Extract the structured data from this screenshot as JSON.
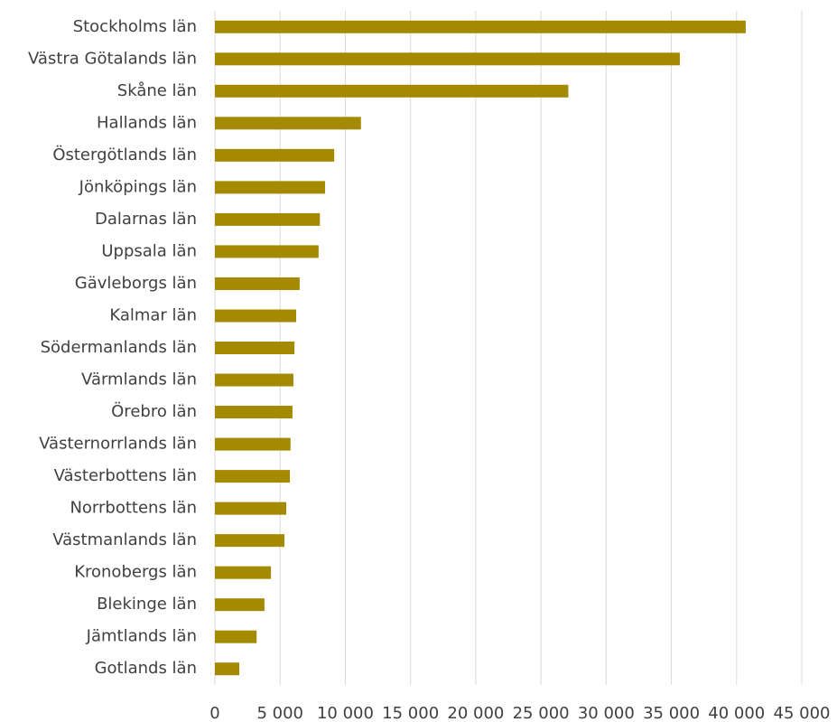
{
  "chart_data": {
    "type": "bar",
    "orientation": "horizontal",
    "categories": [
      "Stockholms län",
      "Västra Götalands län",
      "Skåne län",
      "Hallands län",
      "Östergötlands län",
      "Jönköpings län",
      "Dalarnas län",
      "Uppsala län",
      "Gävleborgs län",
      "Kalmar län",
      "Södermanlands län",
      "Värmlands län",
      "Örebro län",
      "Västernorrlands län",
      "Västerbottens län",
      "Norrbottens län",
      "Västmanlands län",
      "Kronobergs län",
      "Blekinge län",
      "Jämtlands län",
      "Gotlands län"
    ],
    "values": [
      40700,
      35650,
      27100,
      11200,
      9150,
      8450,
      8050,
      7950,
      6500,
      6230,
      6100,
      6020,
      5950,
      5800,
      5750,
      5470,
      5330,
      4300,
      3800,
      3200,
      1870
    ],
    "color": "#a38a00",
    "xlim": [
      0,
      45000
    ],
    "xticks": [
      0,
      {
        "value": 5000,
        "label": "5 000"
      },
      {
        "value": 10000,
        "label": "10 000"
      },
      {
        "value": 15000,
        "label": "15 000"
      },
      {
        "value": 20000,
        "label": "20 000"
      },
      {
        "value": 25000,
        "label": "25 000"
      },
      {
        "value": 30000,
        "label": "30 000"
      },
      {
        "value": 35000,
        "label": "35 000"
      },
      {
        "value": 40000,
        "label": "40 000"
      },
      {
        "value": 45000,
        "label": "45 000"
      }
    ],
    "grid": true
  }
}
